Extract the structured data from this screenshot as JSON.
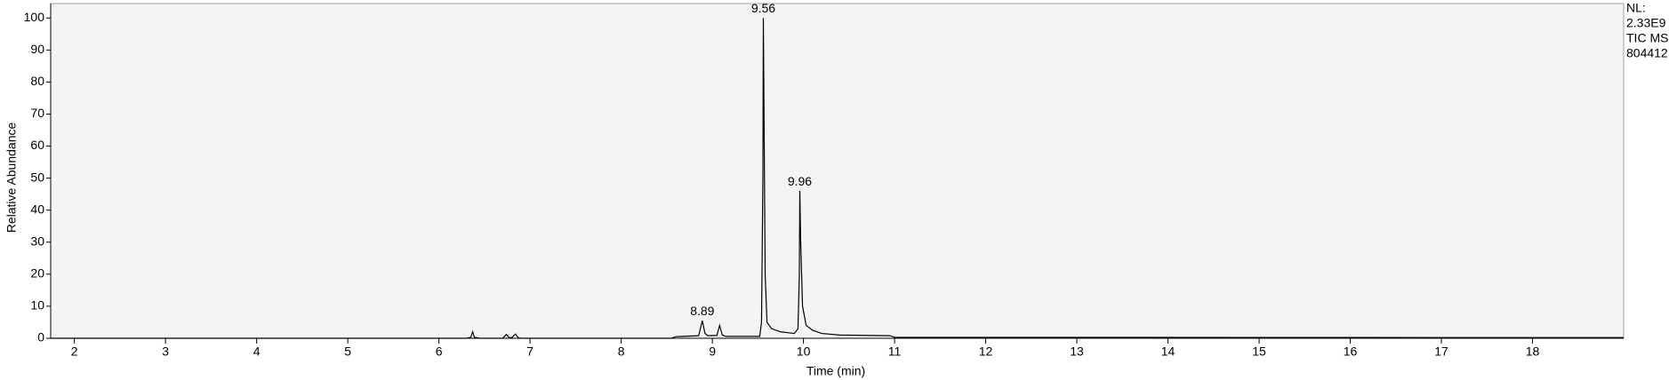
{
  "chart_data": {
    "type": "line",
    "xlabel": "Time (min)",
    "ylabel": "Relative Abundance",
    "info": [
      "NL:",
      "2.33E9",
      "TIC MS",
      "804412"
    ],
    "xlim": [
      1.74,
      19.0
    ],
    "ylim": [
      0,
      104.5
    ],
    "xticks": [
      2,
      3,
      4,
      5,
      6,
      7,
      8,
      9,
      10,
      11,
      12,
      13,
      14,
      15,
      16,
      17,
      18
    ],
    "yticks": [
      0,
      10,
      20,
      30,
      40,
      50,
      60,
      70,
      80,
      90,
      100
    ],
    "series": [
      {
        "color": "#000000",
        "x": [
          1.74,
          6.3,
          6.35,
          6.37,
          6.39,
          6.45,
          6.7,
          6.74,
          6.77,
          6.8,
          6.84,
          6.87,
          6.9,
          8.55,
          8.6,
          8.85,
          8.89,
          8.92,
          8.95,
          9.05,
          9.08,
          9.11,
          9.15,
          9.52,
          9.54,
          9.555,
          9.56,
          9.565,
          9.58,
          9.6,
          9.65,
          9.75,
          9.9,
          9.94,
          9.955,
          9.96,
          9.97,
          9.99,
          10.03,
          10.1,
          10.2,
          10.4,
          10.95,
          11.0,
          19.0
        ],
        "values": [
          0,
          0,
          0.3,
          2,
          0.3,
          0,
          0,
          1.2,
          0.2,
          0.2,
          1.3,
          0.2,
          0,
          0,
          0.5,
          0.8,
          5.5,
          1.5,
          0.8,
          0.9,
          4,
          1,
          0.6,
          0.6,
          5,
          50,
          100,
          80,
          20,
          5,
          3,
          2,
          1.5,
          3,
          20,
          46,
          30,
          10,
          4,
          2.5,
          1.5,
          1,
          0.8,
          0.3,
          0.2
        ]
      }
    ],
    "annotations": [
      {
        "text": "8.89",
        "x": 8.89,
        "y": 5.5
      },
      {
        "text": "9.56",
        "x": 9.56,
        "y": 100
      },
      {
        "text": "9.96",
        "x": 9.96,
        "y": 46
      }
    ]
  }
}
